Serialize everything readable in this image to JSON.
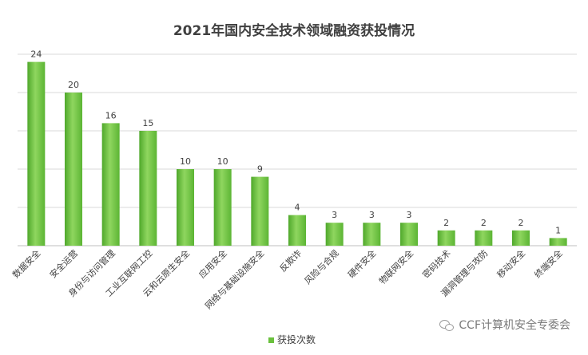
{
  "chart_data": {
    "type": "bar",
    "title": "2021年国内安全技术领域融资获投情况",
    "categories": [
      "数据安全",
      "安全运营",
      "身份与访问管理",
      "工业互联网工控",
      "云和云原生安全",
      "应用安全",
      "网络与基础设施安全",
      "反欺诈",
      "风险与合规",
      "硬件安全",
      "物联网安全",
      "密码技术",
      "漏洞管理与攻防",
      "移动安全",
      "终端安全"
    ],
    "series": [
      {
        "name": "获投次数",
        "values": [
          24,
          20,
          16,
          15,
          10,
          10,
          9,
          4,
          3,
          3,
          3,
          2,
          2,
          2,
          1
        ]
      }
    ],
    "ylim": [
      0,
      25
    ],
    "grid": true,
    "legend": "bottom",
    "colors": {
      "bar": "#6ac13d",
      "bar_light": "#8fd65f",
      "grid": "#d9d9d9"
    }
  },
  "watermark": {
    "text": "CCF计算机安全专委会",
    "icon": "wechat-icon"
  }
}
